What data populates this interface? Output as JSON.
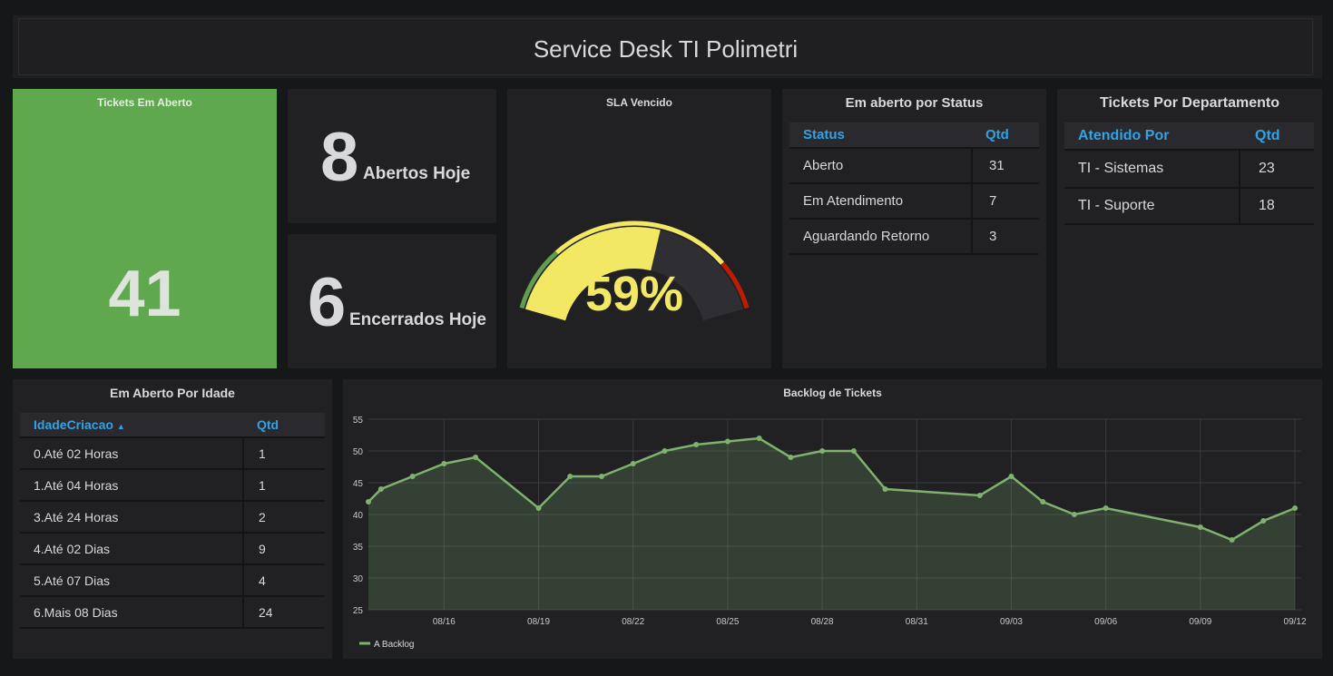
{
  "header": {
    "title": "Service Desk TI Polimetri"
  },
  "tickets_open": {
    "title": "Tickets Em Aberto",
    "value": "41",
    "color": "#5fa84d"
  },
  "opened_today": {
    "value": "8",
    "label": "Abertos Hoje"
  },
  "closed_today": {
    "value": "6",
    "label": "Encerrados Hoje"
  },
  "sla": {
    "title": "SLA Vencido",
    "value_text": "59%",
    "value": 59,
    "gauge_colors": {
      "ok": "#629e51",
      "warn": "#f2e863",
      "crit": "#bf1b00",
      "value_color": "#f2e863"
    }
  },
  "status_table": {
    "title": "Em aberto por Status",
    "columns": [
      "Status",
      "Qtd"
    ],
    "rows": [
      [
        "Aberto",
        "31"
      ],
      [
        "Em Atendimento",
        "7"
      ],
      [
        "Aguardando Retorno",
        "3"
      ]
    ]
  },
  "dept_table": {
    "title": "Tickets Por Departamento",
    "columns": [
      "Atendido Por",
      "Qtd"
    ],
    "rows": [
      [
        "TI - Sistemas",
        "23"
      ],
      [
        "TI - Suporte",
        "18"
      ]
    ]
  },
  "age_table": {
    "title": "Em Aberto Por Idade",
    "columns": [
      "IdadeCriacao",
      "Qtd"
    ],
    "sort_indicator": "▲",
    "rows": [
      [
        "0.Até 02 Horas",
        "1"
      ],
      [
        "1.Até 04 Horas",
        "1"
      ],
      [
        "3.Até 24 Horas",
        "2"
      ],
      [
        "4.Até 02 Dias",
        "9"
      ],
      [
        "5.Até 07 Dias",
        "4"
      ],
      [
        "6.Mais 08 Dias",
        "24"
      ]
    ]
  },
  "chart_data": {
    "type": "area",
    "title": "Backlog de Tickets",
    "xlabel": "",
    "ylabel": "",
    "ylim": [
      25,
      55
    ],
    "yticks": [
      25,
      30,
      35,
      40,
      45,
      50,
      55
    ],
    "xlim": [
      0,
      29.6
    ],
    "xticks": [
      {
        "x": 2.4,
        "label": "08/16"
      },
      {
        "x": 5.4,
        "label": "08/19"
      },
      {
        "x": 8.4,
        "label": "08/22"
      },
      {
        "x": 11.4,
        "label": "08/25"
      },
      {
        "x": 14.4,
        "label": "08/28"
      },
      {
        "x": 17.4,
        "label": "08/31"
      },
      {
        "x": 20.4,
        "label": "09/03"
      },
      {
        "x": 23.4,
        "label": "09/06"
      },
      {
        "x": 26.4,
        "label": "09/09"
      },
      {
        "x": 29.4,
        "label": "09/12"
      }
    ],
    "grid": true,
    "legend": "bottom-left",
    "line_color": "#7eb26d",
    "series": [
      {
        "name": "A Backlog",
        "x": [
          0,
          0.4,
          1.4,
          2.4,
          3.4,
          5.4,
          6.4,
          7.4,
          8.4,
          9.4,
          10.4,
          11.4,
          12.4,
          13.4,
          14.4,
          15.4,
          16.4,
          19.4,
          20.4,
          21.4,
          22.4,
          23.4,
          26.4,
          27.4,
          28.4,
          29.4
        ],
        "y": [
          42,
          44,
          46,
          48,
          49,
          41,
          46,
          46,
          48,
          50,
          51,
          51.5,
          52,
          49,
          50,
          50,
          44,
          43,
          46,
          42,
          40,
          41,
          38,
          36,
          39,
          41
        ]
      }
    ]
  }
}
